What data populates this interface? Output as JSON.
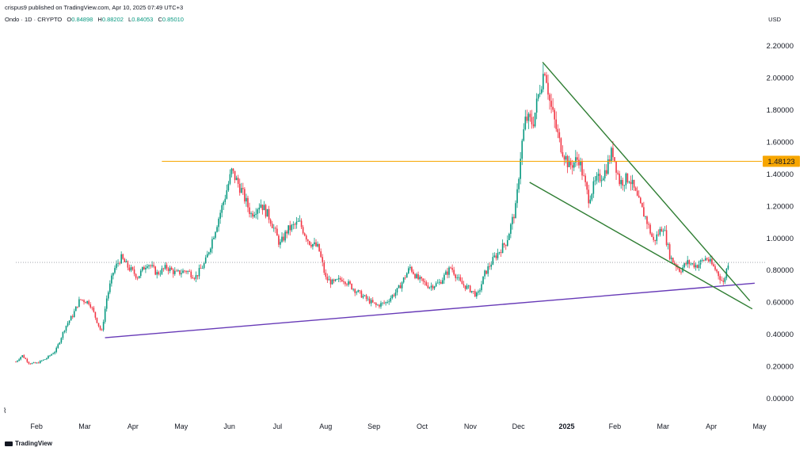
{
  "header": {
    "published": "crispus9 published on TradingView.com, Apr 10, 2025 07:49 UTC+3",
    "symbol": "Ondo · 1D · CRYPTO",
    "o_label": "O",
    "o_value": "0.84898",
    "h_label": "H",
    "h_value": "0.88202",
    "l_label": "L",
    "l_value": "0.84053",
    "c_label": "C",
    "c_value": "0.85010",
    "currency": "USD"
  },
  "footer": {
    "logo_text": "TradingView"
  },
  "chart_data": {
    "type": "candlestick",
    "ylim": [
      -0.05,
      2.3
    ],
    "yticks": [
      0.0,
      0.2,
      0.4,
      0.6,
      0.8,
      1.0,
      1.2,
      1.4,
      1.6,
      1.8,
      2.0,
      2.2
    ],
    "ytick_labels": [
      "0.00000",
      "0.20000",
      "0.40000",
      "0.60000",
      "0.80000",
      "1.00000",
      "1.20000",
      "1.40000",
      "1.60000",
      "1.80000",
      "2.00000",
      "2.20000"
    ],
    "xticks": [
      {
        "label": "Feb",
        "x": 1
      },
      {
        "label": "Mar",
        "x": 2
      },
      {
        "label": "Apr",
        "x": 3
      },
      {
        "label": "May",
        "x": 4
      },
      {
        "label": "Jun",
        "x": 5
      },
      {
        "label": "Jul",
        "x": 6
      },
      {
        "label": "Aug",
        "x": 7
      },
      {
        "label": "Sep",
        "x": 8
      },
      {
        "label": "Oct",
        "x": 9
      },
      {
        "label": "Nov",
        "x": 10
      },
      {
        "label": "Dec",
        "x": 11
      },
      {
        "label": "2025",
        "x": 12
      },
      {
        "label": "Feb",
        "x": 13
      },
      {
        "label": "Mar",
        "x": 14
      },
      {
        "label": "Apr",
        "x": 15
      },
      {
        "label": "May",
        "x": 16
      }
    ],
    "xlim": [
      0.57,
      16.05
    ],
    "up_color": "#089981",
    "down_color": "#f23645",
    "price_path": [
      [
        0.57,
        0.23
      ],
      [
        0.7,
        0.27
      ],
      [
        0.85,
        0.22
      ],
      [
        1.0,
        0.22
      ],
      [
        1.2,
        0.25
      ],
      [
        1.4,
        0.3
      ],
      [
        1.6,
        0.45
      ],
      [
        1.75,
        0.52
      ],
      [
        1.9,
        0.62
      ],
      [
        2.1,
        0.6
      ],
      [
        2.35,
        0.41
      ],
      [
        2.45,
        0.62
      ],
      [
        2.6,
        0.8
      ],
      [
        2.75,
        0.88
      ],
      [
        2.9,
        0.82
      ],
      [
        3.1,
        0.76
      ],
      [
        3.3,
        0.85
      ],
      [
        3.5,
        0.78
      ],
      [
        3.7,
        0.82
      ],
      [
        3.9,
        0.78
      ],
      [
        4.1,
        0.8
      ],
      [
        4.3,
        0.76
      ],
      [
        4.5,
        0.85
      ],
      [
        4.75,
        1.1
      ],
      [
        4.9,
        1.25
      ],
      [
        5.05,
        1.42
      ],
      [
        5.25,
        1.3
      ],
      [
        5.45,
        1.15
      ],
      [
        5.65,
        1.22
      ],
      [
        5.85,
        1.12
      ],
      [
        6.05,
        0.96
      ],
      [
        6.2,
        1.05
      ],
      [
        6.45,
        1.1
      ],
      [
        6.65,
        0.98
      ],
      [
        6.85,
        0.94
      ],
      [
        7.0,
        0.75
      ],
      [
        7.15,
        0.72
      ],
      [
        7.35,
        0.75
      ],
      [
        7.6,
        0.68
      ],
      [
        7.85,
        0.62
      ],
      [
        8.05,
        0.58
      ],
      [
        8.25,
        0.6
      ],
      [
        8.5,
        0.68
      ],
      [
        8.75,
        0.82
      ],
      [
        8.9,
        0.75
      ],
      [
        9.15,
        0.7
      ],
      [
        9.35,
        0.72
      ],
      [
        9.6,
        0.82
      ],
      [
        9.8,
        0.72
      ],
      [
        10.0,
        0.68
      ],
      [
        10.15,
        0.64
      ],
      [
        10.3,
        0.78
      ],
      [
        10.5,
        0.88
      ],
      [
        10.75,
        0.98
      ],
      [
        10.95,
        1.2
      ],
      [
        11.05,
        1.55
      ],
      [
        11.15,
        1.75
      ],
      [
        11.3,
        1.72
      ],
      [
        11.45,
        1.95
      ],
      [
        11.55,
        2.07
      ],
      [
        11.65,
        1.85
      ],
      [
        11.85,
        1.6
      ],
      [
        12.05,
        1.45
      ],
      [
        12.25,
        1.5
      ],
      [
        12.45,
        1.25
      ],
      [
        12.6,
        1.35
      ],
      [
        12.8,
        1.42
      ],
      [
        12.95,
        1.55
      ],
      [
        13.1,
        1.35
      ],
      [
        13.3,
        1.38
      ],
      [
        13.5,
        1.22
      ],
      [
        13.65,
        1.12
      ],
      [
        13.8,
        0.98
      ],
      [
        14.0,
        1.08
      ],
      [
        14.15,
        0.88
      ],
      [
        14.35,
        0.8
      ],
      [
        14.5,
        0.85
      ],
      [
        14.7,
        0.83
      ],
      [
        14.9,
        0.88
      ],
      [
        15.1,
        0.8
      ],
      [
        15.25,
        0.72
      ],
      [
        15.35,
        0.85
      ]
    ],
    "horizontal_level": {
      "value": 1.48123,
      "label": "1.48123",
      "x_start": 3.6,
      "color": "#f7a600"
    },
    "current_price": 0.85,
    "trendlines": [
      {
        "name": "support",
        "color": "#673ab7",
        "x1": 2.42,
        "y1": 0.38,
        "x2": 15.9,
        "y2": 0.72
      },
      {
        "name": "wedge-upper",
        "color": "#2e7d32",
        "x1": 11.5,
        "y1": 2.1,
        "x2": 15.8,
        "y2": 0.61
      },
      {
        "name": "wedge-lower",
        "color": "#2e7d32",
        "x1": 11.23,
        "y1": 1.35,
        "x2": 15.85,
        "y2": 0.56
      }
    ]
  }
}
